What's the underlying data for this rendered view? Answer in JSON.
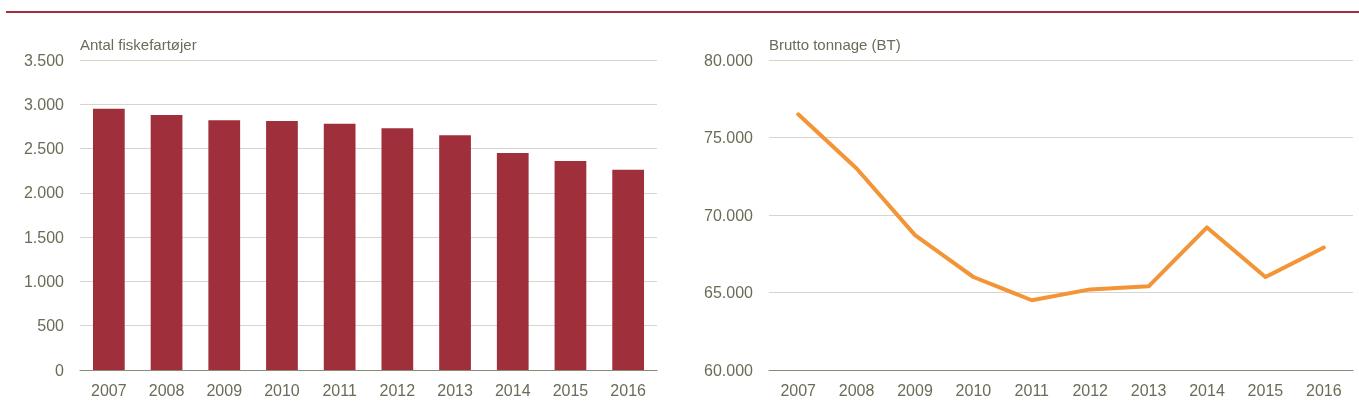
{
  "chart_data": [
    {
      "type": "bar",
      "ylabel": "Antal fiskefartøjer",
      "categories": [
        "2007",
        "2008",
        "2009",
        "2010",
        "2011",
        "2012",
        "2013",
        "2014",
        "2015",
        "2016"
      ],
      "series": [
        {
          "color": "#9e2f3b",
          "values": [
            2950,
            2880,
            2820,
            2810,
            2780,
            2730,
            2650,
            2450,
            2360,
            2260
          ]
        }
      ],
      "ylim": [
        0,
        3500
      ],
      "yticks": [
        0,
        {
          "value": 500,
          "label": "500"
        },
        {
          "value": 1000,
          "label": "1.000"
        },
        {
          "value": 1500,
          "label": "1.500"
        },
        {
          "value": 2000,
          "label": "2.000"
        },
        {
          "value": 2500,
          "label": "2.500"
        },
        {
          "value": 3000,
          "label": "3.000"
        },
        {
          "value": 3500,
          "label": "3.500"
        }
      ],
      "grid": "y"
    },
    {
      "type": "line",
      "ylabel": "Brutto tonnage (BT)",
      "categories": [
        "2007",
        "2008",
        "2009",
        "2010",
        "2011",
        "2012",
        "2013",
        "2014",
        "2015",
        "2016"
      ],
      "series": [
        {
          "color": "#f39436",
          "values": [
            76500,
            73000,
            68700,
            66000,
            64500,
            65200,
            65400,
            69200,
            66000,
            67900
          ]
        }
      ],
      "ylim": [
        60000,
        80000
      ],
      "yticks": [
        {
          "value": 60000,
          "label": "60.000"
        },
        {
          "value": 65000,
          "label": "65.000"
        },
        {
          "value": 70000,
          "label": "70.000"
        },
        {
          "value": 75000,
          "label": "75.000"
        },
        {
          "value": 80000,
          "label": "80.000"
        }
      ],
      "grid": "y",
      "marker": "none",
      "line_style": "solid"
    }
  ]
}
